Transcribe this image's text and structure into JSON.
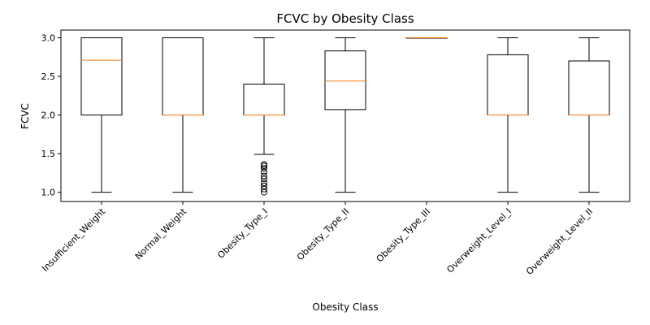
{
  "chart_data": {
    "type": "box",
    "title": "FCVC by Obesity Class",
    "xlabel": "Obesity Class",
    "ylabel": "FCVC",
    "ylim": [
      0.88,
      3.1
    ],
    "yticks": [
      "1.0",
      "1.5",
      "2.0",
      "2.5",
      "3.0"
    ],
    "grid": false,
    "categories": [
      "Insufficient_Weight",
      "Normal_Weight",
      "Obesity_Type_I",
      "Obesity_Type_II",
      "Obesity_Type_III",
      "Overweight_Level_I",
      "Overweight_Level_II"
    ],
    "boxes": [
      {
        "whisker_low": 1.0,
        "q1": 2.0,
        "median": 2.71,
        "q3": 3.0,
        "whisker_high": 3.0,
        "outliers": []
      },
      {
        "whisker_low": 1.0,
        "q1": 2.0,
        "median": 2.0,
        "q3": 3.0,
        "whisker_high": 3.0,
        "outliers": []
      },
      {
        "whisker_low": 1.49,
        "q1": 2.0,
        "median": 2.0,
        "q3": 2.4,
        "whisker_high": 3.0,
        "outliers": [
          1.0,
          1.04,
          1.08,
          1.12,
          1.17,
          1.21,
          1.26,
          1.31,
          1.34,
          1.36
        ]
      },
      {
        "whisker_low": 1.0,
        "q1": 2.07,
        "median": 2.44,
        "q3": 2.83,
        "whisker_high": 3.0,
        "outliers": []
      },
      {
        "whisker_low": 3.0,
        "q1": 3.0,
        "median": 3.0,
        "q3": 3.0,
        "whisker_high": 3.0,
        "outliers": []
      },
      {
        "whisker_low": 1.0,
        "q1": 2.0,
        "median": 2.0,
        "q3": 2.78,
        "whisker_high": 3.0,
        "outliers": []
      },
      {
        "whisker_low": 1.0,
        "q1": 2.0,
        "median": 2.0,
        "q3": 2.7,
        "whisker_high": 3.0,
        "outliers": []
      }
    ],
    "colors": {
      "box": "#000000",
      "median": "#ff7f0e",
      "outlier": "#000000"
    }
  }
}
